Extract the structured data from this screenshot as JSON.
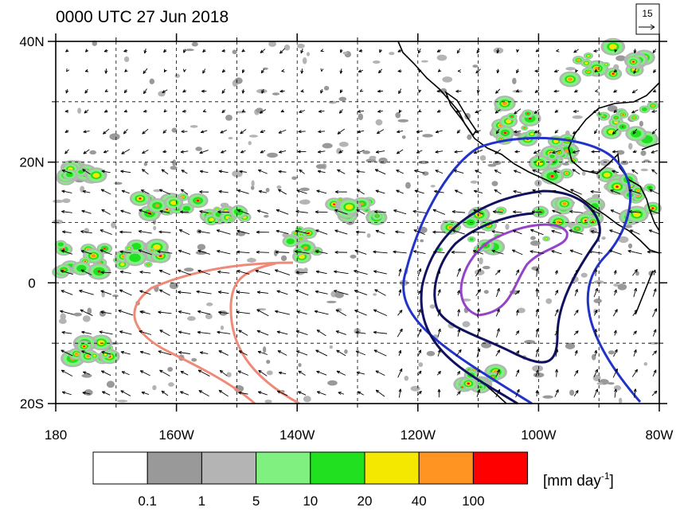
{
  "map": {
    "title": "0000 UTC 27 Jun 2018",
    "reference_vector": "15",
    "lon_ticks": [
      180,
      {
        "value": 200,
        "label": "160W"
      },
      {
        "value": 220,
        "label": "140W"
      },
      {
        "value": 240,
        "label": "120W"
      },
      {
        "value": 260,
        "label": "100W"
      },
      {
        "value": 280,
        "label": "80W"
      }
    ],
    "lat_ticks": [
      {
        "value": 40,
        "label": "40N"
      },
      {
        "value": 20,
        "label": "20N"
      },
      0,
      {
        "value": -20,
        "label": "20S"
      }
    ],
    "colorbar": {
      "levels": [
        0.1,
        1,
        5,
        10,
        20,
        40,
        100
      ],
      "colors": [
        "#ffffff",
        "#999999",
        "#b4b4b4",
        "#80f080",
        "#20e020",
        "#f4e800",
        "#ff9422",
        "#ff0000"
      ],
      "unit": "[mm day",
      "unit_exponent": "-1",
      "unit_close": "]"
    }
  }
}
